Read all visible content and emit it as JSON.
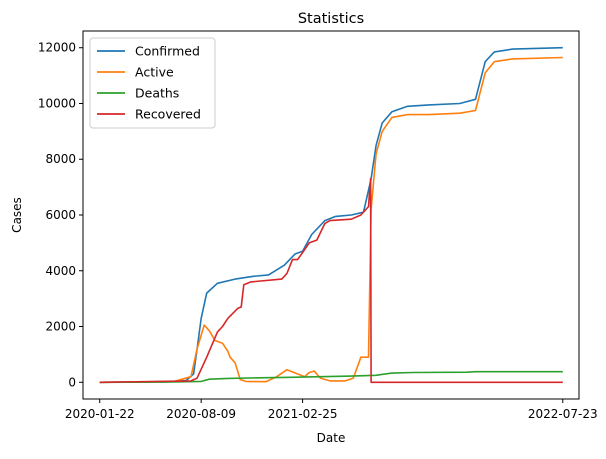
{
  "chart_data": {
    "type": "line",
    "title": "Statistics",
    "xlabel": "Date",
    "ylabel": "Cases",
    "x_ticks": [
      "2020-01-22",
      "2020-08-09",
      "2021-02-25",
      "2022-07-23"
    ],
    "y_ticks": [
      0,
      2000,
      4000,
      6000,
      8000,
      10000,
      12000
    ],
    "xlim": [
      "2019-12-20",
      "2022-08-24"
    ],
    "ylim": [
      -600,
      12600
    ],
    "legend_position": "top-left",
    "grid": false,
    "series": [
      {
        "name": "Confirmed",
        "color": "#1f77b4",
        "points": [
          [
            "2020-01-22",
            0
          ],
          [
            "2020-04-01",
            10
          ],
          [
            "2020-06-15",
            30
          ],
          [
            "2020-07-10",
            60
          ],
          [
            "2020-07-25",
            300
          ],
          [
            "2020-08-01",
            1200
          ],
          [
            "2020-08-09",
            2300
          ],
          [
            "2020-08-20",
            3200
          ],
          [
            "2020-09-10",
            3550
          ],
          [
            "2020-10-15",
            3700
          ],
          [
            "2020-11-20",
            3800
          ],
          [
            "2020-12-20",
            3850
          ],
          [
            "2021-01-20",
            4200
          ],
          [
            "2021-02-10",
            4600
          ],
          [
            "2021-02-25",
            4700
          ],
          [
            "2021-03-15",
            5300
          ],
          [
            "2021-04-10",
            5800
          ],
          [
            "2021-05-01",
            5950
          ],
          [
            "2021-06-01",
            6000
          ],
          [
            "2021-06-25",
            6100
          ],
          [
            "2021-07-10",
            7300
          ],
          [
            "2021-07-20",
            8500
          ],
          [
            "2021-08-01",
            9300
          ],
          [
            "2021-08-20",
            9700
          ],
          [
            "2021-09-20",
            9900
          ],
          [
            "2021-11-01",
            9950
          ],
          [
            "2022-01-01",
            10000
          ],
          [
            "2022-02-01",
            10150
          ],
          [
            "2022-02-20",
            11500
          ],
          [
            "2022-03-10",
            11850
          ],
          [
            "2022-04-15",
            11950
          ],
          [
            "2022-07-23",
            12000
          ]
        ]
      },
      {
        "name": "Active",
        "color": "#ff7f0e",
        "points": [
          [
            "2020-01-22",
            0
          ],
          [
            "2020-06-15",
            20
          ],
          [
            "2020-07-20",
            200
          ],
          [
            "2020-08-01",
            1200
          ],
          [
            "2020-08-15",
            2050
          ],
          [
            "2020-08-25",
            1850
          ],
          [
            "2020-09-05",
            1500
          ],
          [
            "2020-09-20",
            1400
          ],
          [
            "2020-10-01",
            1100
          ],
          [
            "2020-10-05",
            900
          ],
          [
            "2020-10-15",
            700
          ],
          [
            "2020-10-25",
            100
          ],
          [
            "2020-11-05",
            30
          ],
          [
            "2020-12-15",
            20
          ],
          [
            "2021-01-05",
            200
          ],
          [
            "2021-01-25",
            450
          ],
          [
            "2021-02-15",
            300
          ],
          [
            "2021-03-01",
            200
          ],
          [
            "2021-03-10",
            350
          ],
          [
            "2021-03-20",
            400
          ],
          [
            "2021-04-01",
            150
          ],
          [
            "2021-04-20",
            50
          ],
          [
            "2021-05-20",
            50
          ],
          [
            "2021-06-05",
            150
          ],
          [
            "2021-06-20",
            900
          ],
          [
            "2021-07-05",
            900
          ],
          [
            "2021-07-10",
            6200
          ],
          [
            "2021-07-20",
            8200
          ],
          [
            "2021-08-01",
            9000
          ],
          [
            "2021-08-20",
            9500
          ],
          [
            "2021-09-20",
            9600
          ],
          [
            "2021-11-01",
            9600
          ],
          [
            "2022-01-01",
            9650
          ],
          [
            "2022-02-01",
            9750
          ],
          [
            "2022-02-20",
            11100
          ],
          [
            "2022-03-10",
            11500
          ],
          [
            "2022-04-15",
            11600
          ],
          [
            "2022-07-23",
            11650
          ]
        ]
      },
      {
        "name": "Deaths",
        "color": "#2ca02c",
        "points": [
          [
            "2020-01-22",
            0
          ],
          [
            "2020-06-01",
            5
          ],
          [
            "2020-08-09",
            30
          ],
          [
            "2020-08-25",
            110
          ],
          [
            "2020-10-01",
            140
          ],
          [
            "2020-12-01",
            160
          ],
          [
            "2021-02-01",
            180
          ],
          [
            "2021-04-01",
            200
          ],
          [
            "2021-06-01",
            220
          ],
          [
            "2021-07-20",
            250
          ],
          [
            "2021-08-20",
            330
          ],
          [
            "2021-10-01",
            350
          ],
          [
            "2022-01-15",
            360
          ],
          [
            "2022-02-01",
            380
          ],
          [
            "2022-07-23",
            380
          ]
        ]
      },
      {
        "name": "Recovered",
        "color": "#d62728",
        "points": [
          [
            "2020-01-22",
            0
          ],
          [
            "2020-07-20",
            50
          ],
          [
            "2020-08-01",
            150
          ],
          [
            "2020-08-20",
            900
          ],
          [
            "2020-09-10",
            1800
          ],
          [
            "2020-09-20",
            2000
          ],
          [
            "2020-10-01",
            2300
          ],
          [
            "2020-10-20",
            2650
          ],
          [
            "2020-10-27",
            2700
          ],
          [
            "2020-11-01",
            3500
          ],
          [
            "2020-11-15",
            3600
          ],
          [
            "2021-01-15",
            3700
          ],
          [
            "2021-01-25",
            3900
          ],
          [
            "2021-02-05",
            4400
          ],
          [
            "2021-02-15",
            4400
          ],
          [
            "2021-02-25",
            4650
          ],
          [
            "2021-03-10",
            5000
          ],
          [
            "2021-03-25",
            5100
          ],
          [
            "2021-04-10",
            5700
          ],
          [
            "2021-04-20",
            5800
          ],
          [
            "2021-06-01",
            5850
          ],
          [
            "2021-06-20",
            6000
          ],
          [
            "2021-07-05",
            6300
          ],
          [
            "2021-07-09",
            7300
          ],
          [
            "2021-07-10",
            0
          ],
          [
            "2022-07-23",
            0
          ]
        ]
      }
    ]
  }
}
